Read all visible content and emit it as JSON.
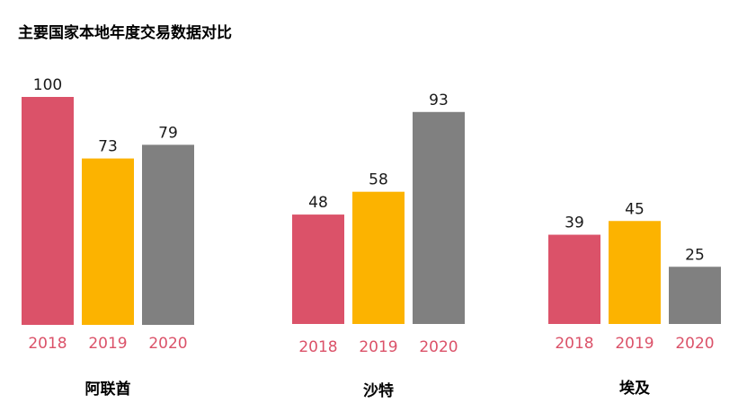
{
  "chart_data": {
    "type": "bar",
    "title": "主要国家本地年度交易数据对比",
    "series_names": [
      "2018",
      "2019",
      "2020"
    ],
    "groups": [
      {
        "name": "阿联酋",
        "values": [
          100,
          73,
          79
        ]
      },
      {
        "name": "沙特",
        "values": [
          48,
          58,
          93
        ]
      },
      {
        "name": "埃及",
        "values": [
          39,
          45,
          25
        ]
      }
    ],
    "colors": [
      "#db5269",
      "#fcb300",
      "#808080"
    ],
    "tick_color": "#db5269"
  }
}
